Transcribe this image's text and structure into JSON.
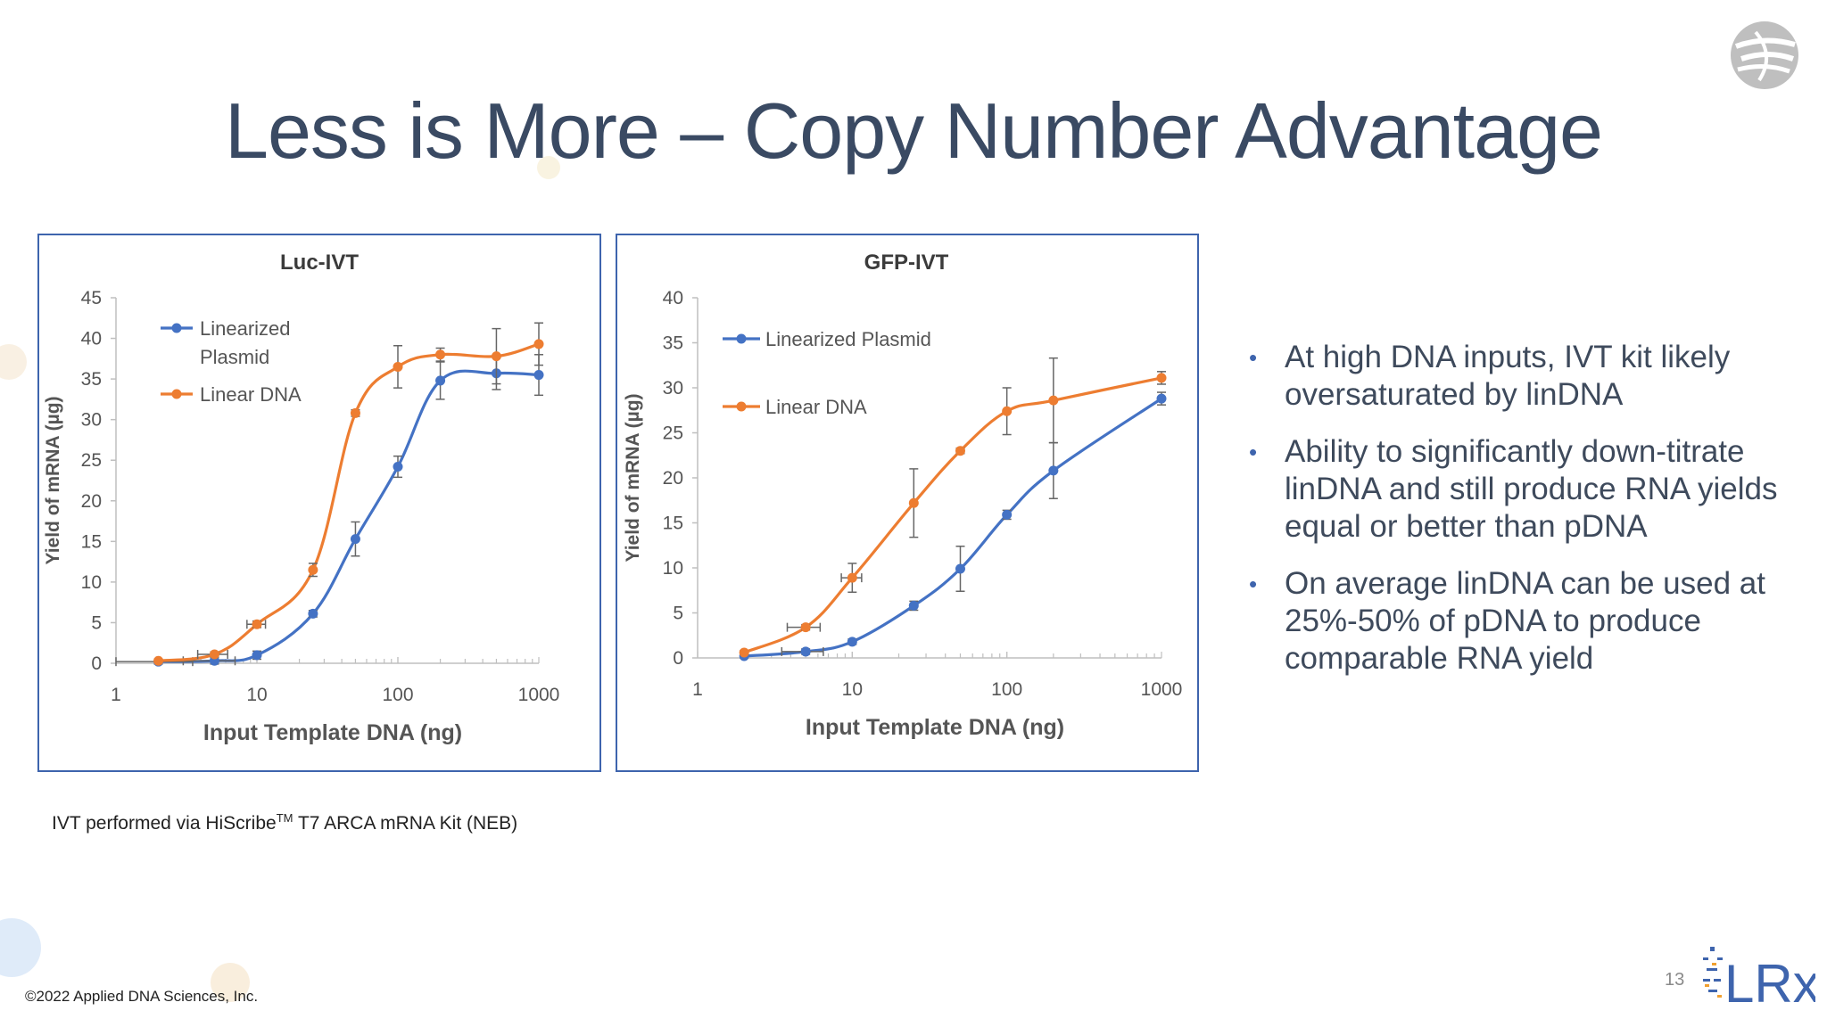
{
  "slide": {
    "title": "Less is More – Copy Number Advantage",
    "bullets": [
      "At high DNA inputs, IVT kit likely oversaturated by linDNA",
      "Ability to significantly down-titrate linDNA and still produce RNA yields equal or better than pDNA",
      "On average linDNA can be used at 25%-50% of pDNA to produce comparable RNA yield"
    ],
    "footnote_prefix": "IVT performed via HiScribe",
    "footnote_tm": "TM",
    "footnote_suffix": " T7 ARCA mRNA Kit (NEB)",
    "copyright": "©2022 Applied DNA Sciences, Inc.",
    "page_number": "13",
    "logo_text": "LRx",
    "colors": {
      "blue": "#4472c4",
      "orange": "#ed7d31",
      "title": "#3a4a63",
      "frame": "#3e64ad"
    }
  },
  "chart_data": [
    {
      "type": "line",
      "title": "Luc-IVT",
      "xlabel": "Input Template DNA (ng)",
      "ylabel": "Yield of mRNA (µg)",
      "x_scale": "log",
      "xlim": [
        1,
        1000
      ],
      "ylim": [
        0,
        45
      ],
      "x_ticks": [
        "1",
        "10",
        "100",
        "1000"
      ],
      "y_ticks": [
        "0",
        "5",
        "10",
        "15",
        "20",
        "25",
        "30",
        "35",
        "40",
        "45"
      ],
      "legend_position": "top-left",
      "series": [
        {
          "name": "Linearized Plasmid",
          "color": "#4472c4",
          "x": [
            2,
            5,
            10,
            25,
            50,
            100,
            200,
            500,
            1000
          ],
          "y": [
            0.2,
            0.3,
            1.0,
            6.1,
            15.3,
            24.2,
            34.8,
            35.7,
            35.5
          ],
          "err": [
            0.3,
            0.4,
            0.5,
            0.4,
            2.1,
            1.3,
            2.3,
            2.0,
            2.5
          ],
          "xerr": [
            1.5,
            2.0,
            0,
            0,
            0,
            0,
            0,
            0,
            0
          ]
        },
        {
          "name": "Linear DNA",
          "color": "#ed7d31",
          "x": [
            2,
            5,
            10,
            25,
            50,
            100,
            200,
            500,
            1000
          ],
          "y": [
            0.3,
            1.1,
            4.8,
            11.5,
            30.8,
            36.5,
            38.0,
            37.8,
            39.3
          ],
          "err": [
            0.2,
            0.3,
            0.4,
            0.8,
            0.4,
            2.6,
            0.8,
            3.4,
            2.6
          ],
          "xerr": [
            0,
            1.2,
            1.5,
            0,
            0,
            0,
            0,
            0,
            0
          ]
        }
      ]
    },
    {
      "type": "line",
      "title": "GFP-IVT",
      "xlabel": "Input Template DNA (ng)",
      "ylabel": "Yield of mRNA (µg)",
      "x_scale": "log",
      "xlim": [
        1,
        1000
      ],
      "ylim": [
        0,
        40
      ],
      "x_ticks": [
        "1",
        "10",
        "100",
        "1000"
      ],
      "y_ticks": [
        "0",
        "5",
        "10",
        "15",
        "20",
        "25",
        "30",
        "35",
        "40"
      ],
      "legend_position": "top-left",
      "series": [
        {
          "name": "Linearized Plasmid",
          "color": "#4472c4",
          "x": [
            2,
            5,
            10,
            25,
            50,
            100,
            200,
            1000
          ],
          "y": [
            0.2,
            0.7,
            1.8,
            5.8,
            9.9,
            15.9,
            20.8,
            28.8
          ],
          "err": [
            0.2,
            0.3,
            0.3,
            0.5,
            2.5,
            0.5,
            3.1,
            0.7
          ],
          "xerr": [
            0,
            1.5,
            0,
            0,
            0,
            0,
            0,
            0
          ]
        },
        {
          "name": "Linear DNA",
          "color": "#ed7d31",
          "x": [
            2,
            5,
            10,
            25,
            50,
            100,
            200,
            1000
          ],
          "y": [
            0.6,
            3.4,
            8.9,
            17.2,
            23.0,
            27.4,
            28.6,
            31.1
          ],
          "err": [
            0.2,
            0.3,
            1.6,
            3.8,
            0.3,
            2.6,
            4.7,
            0.7
          ],
          "xerr": [
            0,
            1.2,
            1.5,
            0,
            0,
            0,
            0,
            0
          ]
        }
      ]
    }
  ]
}
